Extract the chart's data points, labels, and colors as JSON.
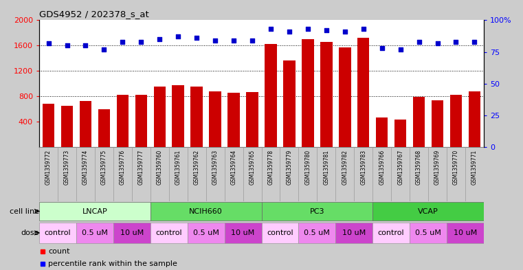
{
  "title": "GDS4952 / 202378_s_at",
  "samples": [
    "GSM1359772",
    "GSM1359773",
    "GSM1359774",
    "GSM1359775",
    "GSM1359776",
    "GSM1359777",
    "GSM1359760",
    "GSM1359761",
    "GSM1359762",
    "GSM1359763",
    "GSM1359764",
    "GSM1359765",
    "GSM1359778",
    "GSM1359779",
    "GSM1359780",
    "GSM1359781",
    "GSM1359782",
    "GSM1359783",
    "GSM1359766",
    "GSM1359767",
    "GSM1359768",
    "GSM1359769",
    "GSM1359770",
    "GSM1359771"
  ],
  "counts": [
    680,
    650,
    730,
    600,
    820,
    820,
    960,
    975,
    960,
    880,
    860,
    870,
    1630,
    1370,
    1700,
    1660,
    1570,
    1720,
    470,
    440,
    790,
    740,
    830,
    880
  ],
  "percentile_ranks": [
    82,
    80,
    80,
    77,
    83,
    83,
    85,
    87,
    86,
    84,
    84,
    84,
    93,
    91,
    93,
    92,
    91,
    93,
    78,
    77,
    83,
    82,
    83,
    83
  ],
  "cell_lines": [
    {
      "name": "LNCAP",
      "start": 0,
      "end": 6,
      "color": "#ccffcc"
    },
    {
      "name": "NCIH660",
      "start": 6,
      "end": 12,
      "color": "#66dd66"
    },
    {
      "name": "PC3",
      "start": 12,
      "end": 18,
      "color": "#66dd66"
    },
    {
      "name": "VCAP",
      "start": 18,
      "end": 24,
      "color": "#44cc44"
    }
  ],
  "doses": [
    {
      "name": "control",
      "start": 0,
      "end": 2,
      "color": "#ffccff"
    },
    {
      "name": "0.5 uM",
      "start": 2,
      "end": 4,
      "color": "#ee88ee"
    },
    {
      "name": "10 uM",
      "start": 4,
      "end": 6,
      "color": "#cc44cc"
    },
    {
      "name": "control",
      "start": 6,
      "end": 8,
      "color": "#ffccff"
    },
    {
      "name": "0.5 uM",
      "start": 8,
      "end": 10,
      "color": "#ee88ee"
    },
    {
      "name": "10 uM",
      "start": 10,
      "end": 12,
      "color": "#cc44cc"
    },
    {
      "name": "control",
      "start": 12,
      "end": 14,
      "color": "#ffccff"
    },
    {
      "name": "0.5 uM",
      "start": 14,
      "end": 16,
      "color": "#ee88ee"
    },
    {
      "name": "10 uM",
      "start": 16,
      "end": 18,
      "color": "#cc44cc"
    },
    {
      "name": "control",
      "start": 18,
      "end": 20,
      "color": "#ffccff"
    },
    {
      "name": "0.5 uM",
      "start": 20,
      "end": 22,
      "color": "#ee88ee"
    },
    {
      "name": "10 uM",
      "start": 22,
      "end": 24,
      "color": "#cc44cc"
    }
  ],
  "bar_color": "#cc0000",
  "dot_color": "#0000cc",
  "fig_bg": "#cccccc",
  "plot_bg": "#ffffff",
  "xtick_bg": "#bbbbbb",
  "ylim_left": [
    0,
    2000
  ],
  "ylim_right": [
    0,
    100
  ],
  "yticks_left": [
    400,
    800,
    1200,
    1600,
    2000
  ],
  "yticks_right": [
    0,
    25,
    50,
    75,
    100
  ],
  "gridlines": [
    800,
    1200,
    1600
  ],
  "bar_width": 0.65
}
